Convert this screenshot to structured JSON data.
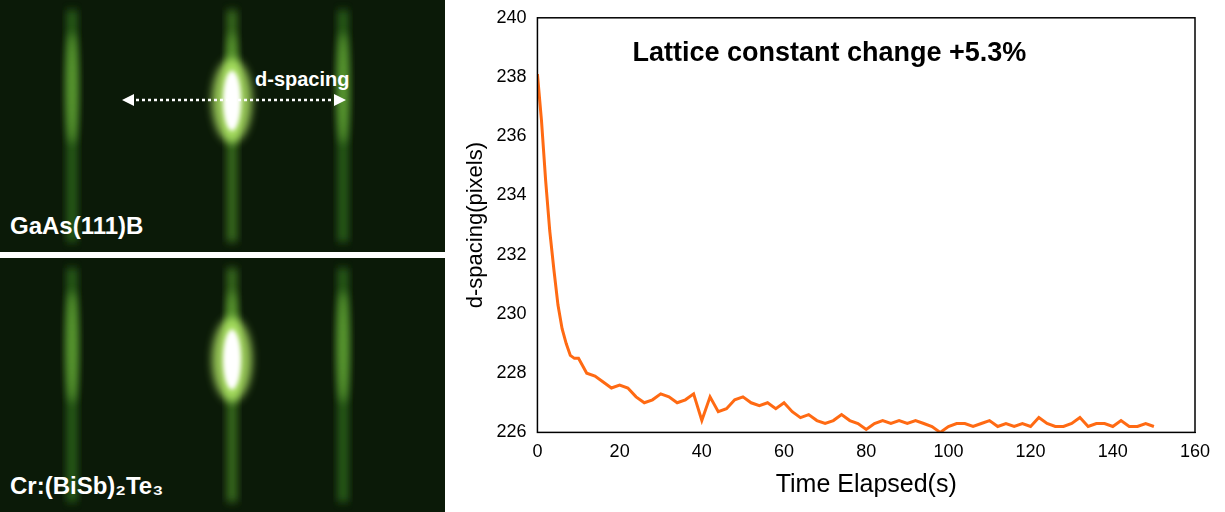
{
  "images": [
    {
      "label": "GaAs(111)B",
      "annotation": "d-spacing"
    },
    {
      "label": "Cr:(BiSb)₂Te₃"
    }
  ],
  "chart_data": {
    "type": "line",
    "annotation": "Lattice constant change +5.3%",
    "x_label": "Time Elapsed(s)",
    "y_label": "d-spacing(pixels)",
    "color": "#ff6a13",
    "grid": false,
    "xlim": [
      0,
      160
    ],
    "xticks": [
      0,
      20,
      40,
      60,
      80,
      100,
      120,
      140,
      160
    ],
    "ylim": [
      226,
      240
    ],
    "yticks": [
      226,
      228,
      230,
      232,
      234,
      236,
      238,
      240
    ],
    "x": [
      0,
      1,
      2,
      3,
      4,
      5,
      6,
      7,
      8,
      9,
      10,
      12,
      14,
      16,
      18,
      20,
      22,
      24,
      26,
      28,
      30,
      32,
      34,
      36,
      38,
      40,
      42,
      44,
      46,
      48,
      50,
      52,
      54,
      56,
      58,
      60,
      62,
      64,
      66,
      68,
      70,
      72,
      74,
      76,
      78,
      80,
      82,
      84,
      86,
      88,
      90,
      92,
      94,
      96,
      98,
      100,
      102,
      104,
      106,
      108,
      110,
      112,
      114,
      116,
      118,
      120,
      122,
      124,
      126,
      128,
      130,
      132,
      134,
      136,
      138,
      140,
      142,
      144,
      146,
      148,
      150
    ],
    "values": [
      238.1,
      236.5,
      234.5,
      232.8,
      231.5,
      230.3,
      229.5,
      229.0,
      228.6,
      228.5,
      228.5,
      228.0,
      227.9,
      227.7,
      227.5,
      227.6,
      227.5,
      227.2,
      227.0,
      227.1,
      227.3,
      227.2,
      227.0,
      227.1,
      227.3,
      226.4,
      227.2,
      226.7,
      226.8,
      227.1,
      227.2,
      227.0,
      226.9,
      227.0,
      226.8,
      227.0,
      226.7,
      226.5,
      226.6,
      226.4,
      226.3,
      226.4,
      226.6,
      226.4,
      226.3,
      226.1,
      226.3,
      226.4,
      226.3,
      226.4,
      226.3,
      226.4,
      226.3,
      226.2,
      226.0,
      226.2,
      226.3,
      226.3,
      226.2,
      226.3,
      226.4,
      226.2,
      226.3,
      226.2,
      226.3,
      226.2,
      226.5,
      226.3,
      226.2,
      226.2,
      226.3,
      226.5,
      226.2,
      226.3,
      226.3,
      226.2,
      226.4,
      226.2,
      226.2,
      226.3,
      226.2
    ]
  }
}
